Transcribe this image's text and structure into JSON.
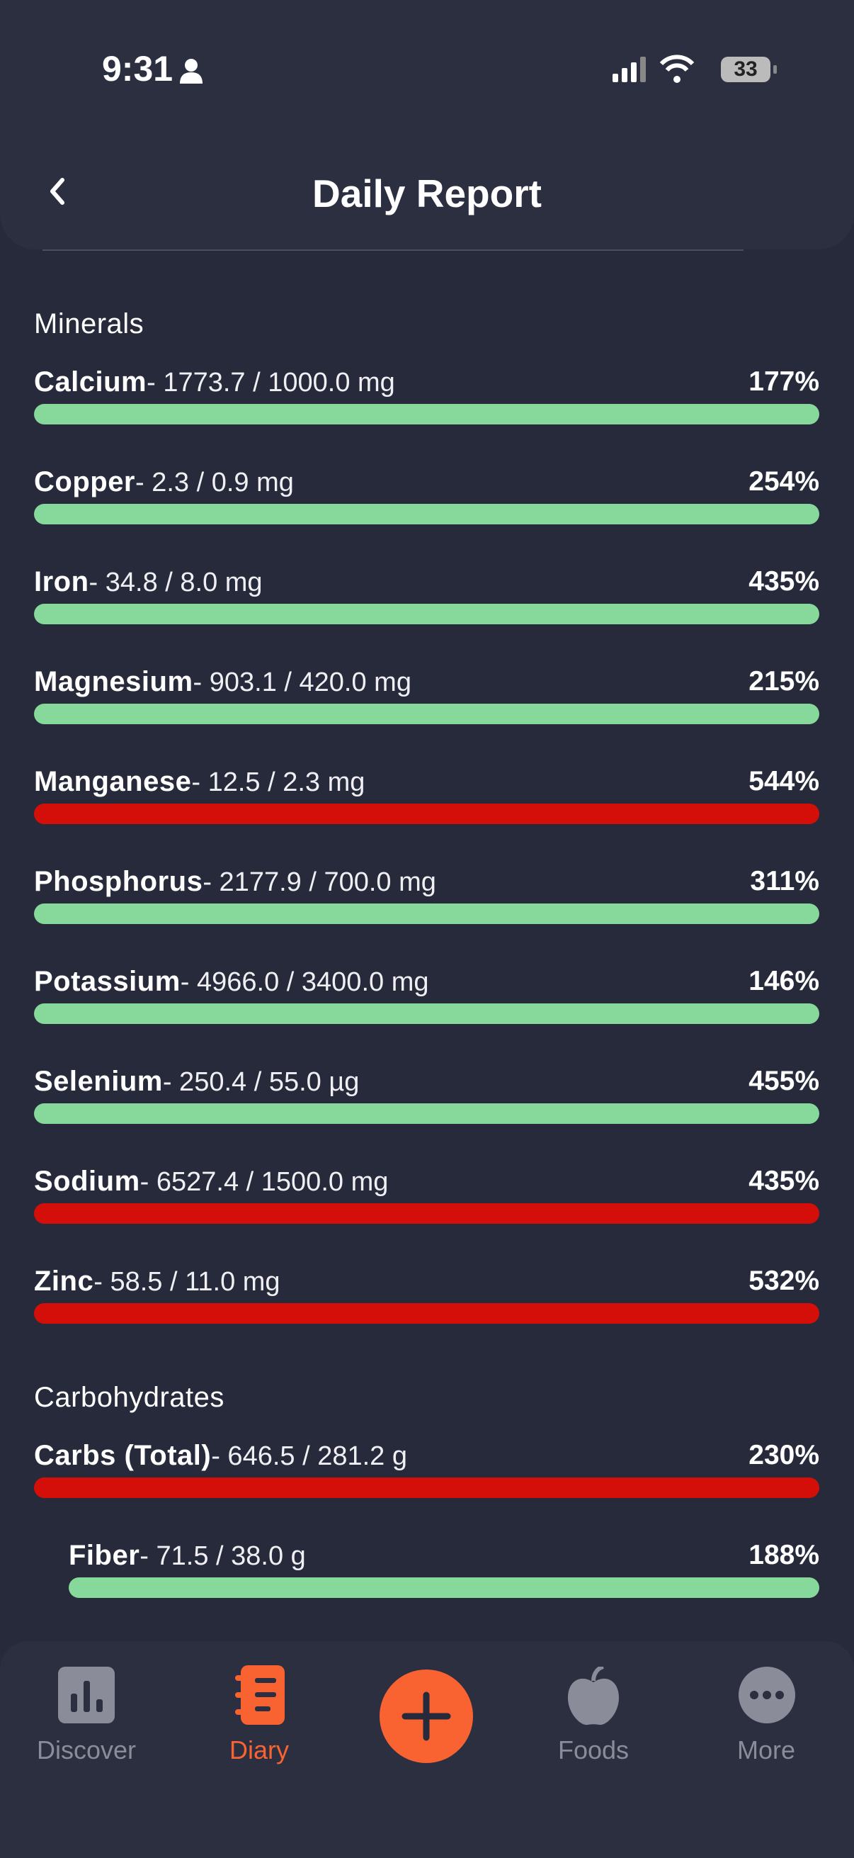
{
  "status_bar": {
    "time": "9:31",
    "battery": "33"
  },
  "header": {
    "title": "Daily Report"
  },
  "sections": [
    {
      "title": "Minerals",
      "items": [
        {
          "name": "Calcium",
          "detail": "- 1773.7 / 1000.0 mg",
          "percent": "177%",
          "color": "#86d99b"
        },
        {
          "name": "Copper",
          "detail": "- 2.3 / 0.9 mg",
          "percent": "254%",
          "color": "#86d99b"
        },
        {
          "name": "Iron",
          "detail": "- 34.8 / 8.0 mg",
          "percent": "435%",
          "color": "#86d99b"
        },
        {
          "name": "Magnesium",
          "detail": "- 903.1 / 420.0 mg",
          "percent": "215%",
          "color": "#86d99b"
        },
        {
          "name": "Manganese",
          "detail": "- 12.5 / 2.3 mg",
          "percent": "544%",
          "color": "#d40f0a"
        },
        {
          "name": "Phosphorus",
          "detail": "- 2177.9 / 700.0 mg",
          "percent": "311%",
          "color": "#86d99b"
        },
        {
          "name": "Potassium",
          "detail": "- 4966.0 / 3400.0 mg",
          "percent": "146%",
          "color": "#86d99b"
        },
        {
          "name": "Selenium",
          "detail": "- 250.4 / 55.0 µg",
          "percent": "455%",
          "color": "#86d99b"
        },
        {
          "name": "Sodium",
          "detail": "- 6527.4 / 1500.0 mg",
          "percent": "435%",
          "color": "#d40f0a"
        },
        {
          "name": "Zinc",
          "detail": "- 58.5 / 11.0 mg",
          "percent": "532%",
          "color": "#d40f0a"
        }
      ]
    },
    {
      "title": "Carbohydrates",
      "items": [
        {
          "name": "Carbs (Total)",
          "detail": "- 646.5 / 281.2 g",
          "percent": "230%",
          "color": "#d40f0a",
          "subitems": [
            {
              "name": "Fiber",
              "detail": "- 71.5 / 38.0 g",
              "percent": "188%",
              "color": "#86d99b"
            }
          ]
        }
      ]
    }
  ],
  "nav": {
    "discover": "Discover",
    "diary": "Diary",
    "foods": "Foods",
    "more": "More"
  }
}
